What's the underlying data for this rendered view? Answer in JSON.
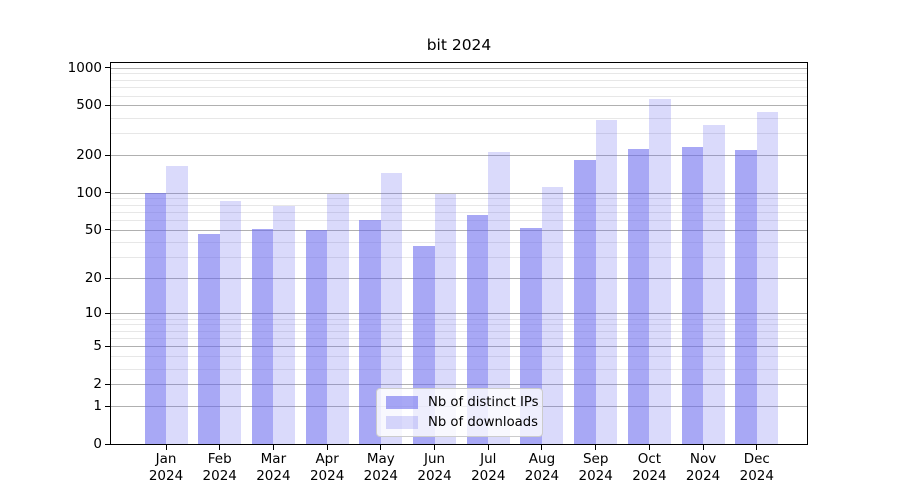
{
  "title": "bit 2024",
  "chart_data": {
    "type": "bar",
    "title": "bit 2024",
    "categories": [
      "Jan",
      "Feb",
      "Mar",
      "Apr",
      "May",
      "Jun",
      "Jul",
      "Aug",
      "Sep",
      "Oct",
      "Nov",
      "Dec"
    ],
    "category_year_label": "2024",
    "series": [
      {
        "name": "Nb of distinct IPs",
        "color": "#6666ee",
        "alpha": 0.57,
        "values": [
          100,
          46,
          51,
          50,
          60,
          37,
          66,
          52,
          182,
          225,
          232,
          219
        ]
      },
      {
        "name": "Nb of downloads",
        "color": "#6666ee",
        "alpha": 0.24,
        "values": [
          163,
          86,
          78,
          98,
          143,
          98,
          213,
          112,
          385,
          565,
          350,
          445
        ]
      }
    ],
    "yscale": "log1p",
    "ylim": [
      0,
      1091
    ],
    "yticks_major": [
      0,
      1,
      2,
      5,
      10,
      20,
      50,
      100,
      200,
      500,
      1000
    ],
    "yticks_minor": [
      3,
      4,
      6,
      7,
      8,
      9,
      30,
      40,
      60,
      70,
      80,
      90,
      300,
      400,
      600,
      700,
      800,
      900
    ],
    "grid": true,
    "legend_position": "lower center",
    "colors": {
      "major_grid": "#b0b0b0",
      "minor_grid": "#e7e7e7",
      "spine": "#000000",
      "background": "#ffffff"
    }
  },
  "legend": {
    "items": [
      {
        "label": "Nb of distinct IPs"
      },
      {
        "label": "Nb of downloads"
      }
    ]
  }
}
